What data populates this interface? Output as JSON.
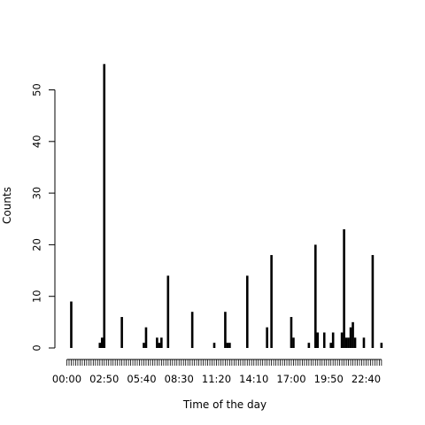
{
  "chart_data": {
    "type": "bar",
    "xlabel": "Time of the day",
    "ylabel": "Counts",
    "ylim": [
      0,
      55
    ],
    "yticks": [
      0,
      10,
      20,
      30,
      40,
      50
    ],
    "grid": false,
    "legend": "none",
    "bar_color": "#000000",
    "bin_minutes": 10,
    "x_tick_labels": [
      "00:00",
      "02:50",
      "05:40",
      "08:30",
      "11:20",
      "14:10",
      "17:00",
      "19:50",
      "22:40"
    ],
    "bars": [
      {
        "time": "00:20",
        "count": 9
      },
      {
        "time": "02:30",
        "count": 1
      },
      {
        "time": "02:40",
        "count": 2
      },
      {
        "time": "02:50",
        "count": 55
      },
      {
        "time": "04:10",
        "count": 6
      },
      {
        "time": "05:50",
        "count": 1
      },
      {
        "time": "06:00",
        "count": 4
      },
      {
        "time": "06:50",
        "count": 2
      },
      {
        "time": "07:00",
        "count": 1
      },
      {
        "time": "07:10",
        "count": 2
      },
      {
        "time": "07:40",
        "count": 14
      },
      {
        "time": "09:30",
        "count": 7
      },
      {
        "time": "11:10",
        "count": 1
      },
      {
        "time": "12:00",
        "count": 7
      },
      {
        "time": "12:10",
        "count": 1
      },
      {
        "time": "12:20",
        "count": 1
      },
      {
        "time": "13:40",
        "count": 14
      },
      {
        "time": "15:10",
        "count": 4
      },
      {
        "time": "15:30",
        "count": 18
      },
      {
        "time": "17:00",
        "count": 6
      },
      {
        "time": "17:10",
        "count": 2
      },
      {
        "time": "18:20",
        "count": 1
      },
      {
        "time": "18:50",
        "count": 20
      },
      {
        "time": "19:00",
        "count": 3
      },
      {
        "time": "19:30",
        "count": 3
      },
      {
        "time": "20:00",
        "count": 1
      },
      {
        "time": "20:10",
        "count": 3
      },
      {
        "time": "20:50",
        "count": 3
      },
      {
        "time": "21:00",
        "count": 23
      },
      {
        "time": "21:10",
        "count": 2
      },
      {
        "time": "21:20",
        "count": 2
      },
      {
        "time": "21:30",
        "count": 4
      },
      {
        "time": "21:40",
        "count": 5
      },
      {
        "time": "21:50",
        "count": 2
      },
      {
        "time": "22:30",
        "count": 2
      },
      {
        "time": "23:10",
        "count": 18
      },
      {
        "time": "23:50",
        "count": 1
      }
    ]
  }
}
